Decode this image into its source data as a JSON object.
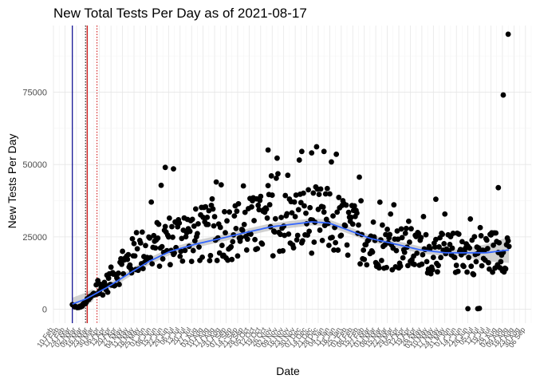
{
  "chart_data": {
    "type": "scatter",
    "title": "New Total Tests Per Day as of 2021-08-17",
    "xlabel": "Date",
    "ylabel": "New Tests Per Day",
    "xlim": [
      "2020-02-10",
      "2021-09-13"
    ],
    "ylim": [
      -4800,
      98000
    ],
    "y_ticks": [
      0,
      25000,
      50000,
      75000
    ],
    "x_ticks": [
      "10 Feb",
      "17 Feb",
      "24 Feb",
      "02 Mar",
      "09 Mar",
      "16 Mar",
      "23 Mar",
      "30 Mar",
      "06 Apr",
      "13 Apr",
      "20 Apr",
      "27 Apr",
      "04 May",
      "11 May",
      "18 May",
      "25 May",
      "01 Jun",
      "08 Jun",
      "15 Jun",
      "22 Jun",
      "29 Jun",
      "06 Jul",
      "13 Jul",
      "20 Jul",
      "27 Jul",
      "03 Aug",
      "10 Aug",
      "17 Aug",
      "24 Aug",
      "31 Aug",
      "07 Sep",
      "14 Sep",
      "21 Sep",
      "28 Sep",
      "05 Oct",
      "12 Oct",
      "19 Oct",
      "26 Oct",
      "02 Nov",
      "09 Nov",
      "16 Nov",
      "23 Nov",
      "30 Nov",
      "07 Dec",
      "14 Dec",
      "21 Dec",
      "28 Dec",
      "04 Jan",
      "11 Jan",
      "18 Jan",
      "25 Jan",
      "01 Feb",
      "08 Feb",
      "15 Feb",
      "22 Feb",
      "01 Mar",
      "08 Mar",
      "15 Mar",
      "22 Mar",
      "29 Mar",
      "05 Apr",
      "12 Apr",
      "19 Apr",
      "26 Apr",
      "03 May",
      "10 May",
      "17 May",
      "24 May",
      "31 May",
      "07 Jun",
      "14 Jun",
      "21 Jun",
      "28 Jun",
      "05 Jul",
      "12 Jul",
      "19 Jul",
      "26 Jul",
      "02 Aug",
      "09 Aug",
      "16 Aug",
      "23 Aug",
      "30 Aug",
      "06 Sep"
    ],
    "grid": true,
    "vertical_lines": [
      {
        "x": "2020-03-04",
        "color": "#00008b",
        "style": "solid"
      },
      {
        "x": "2020-03-20",
        "color": "#000000",
        "style": "dotted"
      },
      {
        "x": "2020-03-22",
        "color": "#cc0000",
        "style": "solid"
      },
      {
        "x": "2020-04-03",
        "color": "#cc0000",
        "style": "dotted"
      }
    ],
    "smooth_color": "#3366ff",
    "band_color": "#bdbdbd",
    "point_color": "#000000",
    "anchors": [
      [
        "2020-03-04",
        1500
      ],
      [
        "2020-03-10",
        500
      ],
      [
        "2020-03-16",
        1200
      ],
      [
        "2020-03-24",
        3500
      ],
      [
        "2020-04-03",
        6000
      ],
      [
        "2020-04-15",
        9000
      ],
      [
        "2020-05-01",
        14000
      ],
      [
        "2020-05-20",
        19000
      ],
      [
        "2020-06-10",
        22000
      ],
      [
        "2020-07-05",
        24500
      ],
      [
        "2020-08-01",
        25500
      ],
      [
        "2020-09-01",
        26500
      ],
      [
        "2020-09-20",
        27500
      ],
      [
        "2020-10-10",
        28500
      ],
      [
        "2020-11-01",
        29500
      ],
      [
        "2020-11-20",
        30000
      ],
      [
        "2020-12-15",
        31000
      ],
      [
        "2021-01-10",
        30500
      ],
      [
        "2021-01-30",
        28000
      ],
      [
        "2021-02-25",
        24000
      ],
      [
        "2021-03-20",
        22000
      ],
      [
        "2021-04-10",
        21000
      ],
      [
        "2021-05-05",
        19500
      ],
      [
        "2021-05-25",
        19000
      ],
      [
        "2021-06-15",
        19500
      ],
      [
        "2021-07-10",
        19000
      ],
      [
        "2021-08-17",
        21000
      ]
    ],
    "smooth_line": [
      [
        "2020-03-04",
        1800
      ],
      [
        "2020-03-20",
        3500
      ],
      [
        "2020-04-15",
        7500
      ],
      [
        "2020-05-10",
        12000
      ],
      [
        "2020-06-05",
        16500
      ],
      [
        "2020-07-01",
        20000
      ],
      [
        "2020-08-01",
        22500
      ],
      [
        "2020-09-01",
        24500
      ],
      [
        "2020-10-01",
        26500
      ],
      [
        "2020-11-01",
        28500
      ],
      [
        "2020-12-01",
        29500
      ],
      [
        "2020-12-20",
        30200
      ],
      [
        "2021-01-10",
        29800
      ],
      [
        "2021-02-01",
        27500
      ],
      [
        "2021-03-01",
        24500
      ],
      [
        "2021-04-01",
        22500
      ],
      [
        "2021-05-01",
        20500
      ],
      [
        "2021-06-01",
        19500
      ],
      [
        "2021-07-01",
        19500
      ],
      [
        "2021-07-20",
        19500
      ],
      [
        "2021-08-17",
        20500
      ]
    ],
    "outliers": [
      [
        "2020-06-25",
        49000
      ],
      [
        "2020-07-05",
        48500
      ],
      [
        "2020-10-28",
        55000
      ],
      [
        "2020-12-08",
        54500
      ],
      [
        "2020-12-20",
        54000
      ],
      [
        "2021-01-04",
        54500
      ],
      [
        "2021-05-20",
        38000
      ],
      [
        "2021-06-28",
        200
      ],
      [
        "2021-07-10",
        200
      ],
      [
        "2021-07-12",
        300
      ],
      [
        "2021-08-04",
        42000
      ],
      [
        "2021-08-10",
        74000
      ],
      [
        "2021-08-16",
        95000
      ]
    ]
  }
}
